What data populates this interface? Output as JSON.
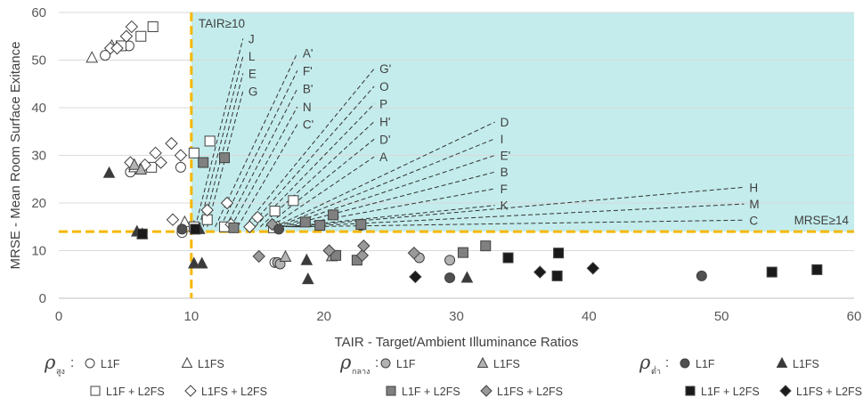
{
  "chart_data": {
    "type": "scatter",
    "title": "",
    "xlabel": "TAIR - Target/Ambient Illuminance Ratios",
    "ylabel": "MRSE - Mean Room Surface Exitance",
    "xlim": [
      0,
      60
    ],
    "ylim": [
      0,
      60
    ],
    "x_ticks": [
      "0",
      "10",
      "20",
      "30",
      "40",
      "50",
      "60"
    ],
    "y_ticks": [
      "0",
      "10",
      "20",
      "30",
      "40",
      "50",
      "60"
    ],
    "grid": "horizontal",
    "threshold_lines": {
      "tair": 10,
      "mrse": 14,
      "tair_label": "TAIR≥10",
      "mrse_label": "MRSE≥14",
      "line_color": "#F5B800",
      "region_fill": "#C4ECEC"
    },
    "series": [
      {
        "key": "s1",
        "group": 0,
        "marker": "circle",
        "fill": "#ffffff",
        "points": [
          [
            3.5,
            51
          ],
          [
            5.3,
            53
          ],
          [
            5.4,
            26.5
          ],
          [
            9.2,
            27.5
          ],
          [
            9.3,
            13.8
          ],
          [
            16.3,
            7.5
          ]
        ]
      },
      {
        "key": "s2",
        "group": 0,
        "marker": "triangle",
        "fill": "#ffffff",
        "points": [
          [
            2.5,
            50.5
          ],
          [
            4,
            53
          ],
          [
            5.7,
            27.5
          ],
          [
            9.5,
            16
          ],
          [
            10.2,
            15
          ]
        ]
      },
      {
        "key": "s3",
        "group": 0,
        "marker": "square",
        "fill": "#ffffff",
        "points": [
          [
            4.7,
            53
          ],
          [
            6.2,
            55
          ],
          [
            7.1,
            57
          ],
          [
            7,
            27.5
          ],
          [
            10.2,
            30.5
          ],
          [
            10.2,
            15
          ],
          [
            11.2,
            16.5
          ],
          [
            11.4,
            33
          ],
          [
            12.5,
            15
          ],
          [
            16.2,
            14.8
          ],
          [
            16.3,
            18.3
          ],
          [
            17.7,
            20.5
          ]
        ]
      },
      {
        "key": "s4",
        "group": 0,
        "marker": "diamond",
        "fill": "#ffffff",
        "points": [
          [
            3.9,
            52.5
          ],
          [
            4.4,
            52.5
          ],
          [
            5.1,
            55
          ],
          [
            5.5,
            57
          ],
          [
            5.4,
            28.5
          ],
          [
            6.5,
            28
          ],
          [
            7.3,
            30.5
          ],
          [
            7.7,
            28.5
          ],
          [
            8.5,
            32.5
          ],
          [
            9.2,
            30
          ],
          [
            8.6,
            16.5
          ],
          [
            11.2,
            18.5
          ],
          [
            12.7,
            20
          ],
          [
            13,
            15.5
          ],
          [
            14.4,
            15
          ],
          [
            15,
            17
          ],
          [
            16.5,
            15
          ]
        ]
      },
      {
        "key": "s5",
        "group": 1,
        "marker": "circle",
        "fill": "#b3b3b3",
        "points": [
          [
            16.5,
            7.5
          ],
          [
            16.7,
            7.2
          ],
          [
            22.8,
            15.3
          ],
          [
            27.2,
            8.5
          ],
          [
            29.5,
            8
          ]
        ]
      },
      {
        "key": "s6",
        "group": 1,
        "marker": "triangle",
        "fill": "#b3b3b3",
        "points": [
          [
            5.7,
            28
          ],
          [
            6.2,
            27
          ],
          [
            17.1,
            8.7
          ],
          [
            20.6,
            8.8
          ]
        ]
      },
      {
        "key": "s7",
        "group": 1,
        "marker": "square",
        "fill": "#808080",
        "points": [
          [
            10.9,
            28.5
          ],
          [
            12.5,
            29.5
          ],
          [
            13.2,
            14.8
          ],
          [
            18.6,
            16
          ],
          [
            19.7,
            15.3
          ],
          [
            20.7,
            17.5
          ],
          [
            20.9,
            9
          ],
          [
            22.5,
            8
          ],
          [
            22.8,
            15.5
          ],
          [
            30.5,
            9.6
          ],
          [
            32.2,
            11
          ]
        ]
      },
      {
        "key": "s8",
        "group": 1,
        "marker": "diamond",
        "fill": "#999999",
        "points": [
          [
            15.1,
            8.8
          ],
          [
            16.1,
            15.5
          ],
          [
            20.4,
            10
          ],
          [
            22.9,
            9
          ],
          [
            23,
            11
          ],
          [
            26.8,
            9.5
          ]
        ]
      },
      {
        "key": "s9",
        "group": 2,
        "marker": "circle",
        "fill": "#505050",
        "points": [
          [
            9.3,
            14.5
          ],
          [
            16.6,
            14.5
          ],
          [
            29.5,
            4.3
          ],
          [
            48.5,
            4.7
          ]
        ]
      },
      {
        "key": "s10",
        "group": 2,
        "marker": "triangle",
        "fill": "#3a3a3a",
        "points": [
          [
            3.8,
            26.3
          ],
          [
            5.9,
            14
          ],
          [
            6.3,
            13.5
          ],
          [
            10.2,
            7.3
          ],
          [
            10.8,
            7.3
          ],
          [
            10.6,
            14.5
          ],
          [
            18.7,
            8
          ],
          [
            18.8,
            4
          ],
          [
            30.8,
            4.3
          ]
        ]
      },
      {
        "key": "s11",
        "group": 2,
        "marker": "square",
        "fill": "#1a1a1a",
        "points": [
          [
            6.3,
            13.5
          ],
          [
            10.3,
            14.5
          ],
          [
            33.9,
            8.5
          ],
          [
            37.6,
            4.7
          ],
          [
            37.7,
            9.5
          ],
          [
            53.8,
            5.5
          ],
          [
            57.2,
            6
          ]
        ]
      },
      {
        "key": "s12",
        "group": 2,
        "marker": "diamond",
        "fill": "#1a1a1a",
        "points": [
          [
            26.9,
            4.5
          ],
          [
            36.3,
            5.5
          ],
          [
            40.3,
            6.3
          ]
        ]
      }
    ],
    "annotations": [
      {
        "label": "J",
        "text_at": [
          14.3,
          54.5
        ],
        "point": [
          10.3,
          15
        ]
      },
      {
        "label": "L",
        "text_at": [
          14.3,
          50.8
        ],
        "point": [
          10.6,
          15
        ]
      },
      {
        "label": "E",
        "text_at": [
          14.3,
          47.2
        ],
        "point": [
          10.9,
          15
        ]
      },
      {
        "label": "G",
        "text_at": [
          14.3,
          43.5
        ],
        "point": [
          11.2,
          15
        ]
      },
      {
        "label": "A'",
        "text_at": [
          18.4,
          51.5
        ],
        "point": [
          11.8,
          15
        ]
      },
      {
        "label": "F'",
        "text_at": [
          18.4,
          47.8
        ],
        "point": [
          12.2,
          15
        ]
      },
      {
        "label": "B'",
        "text_at": [
          18.4,
          44
        ],
        "point": [
          12.6,
          15
        ]
      },
      {
        "label": "N",
        "text_at": [
          18.4,
          40.2
        ],
        "point": [
          13,
          15
        ]
      },
      {
        "label": "C'",
        "text_at": [
          18.4,
          36.5
        ],
        "point": [
          13.5,
          15
        ]
      },
      {
        "label": "G'",
        "text_at": [
          24.2,
          48.2
        ],
        "point": [
          14,
          15
        ]
      },
      {
        "label": "O",
        "text_at": [
          24.2,
          44.5
        ],
        "point": [
          14.4,
          15
        ]
      },
      {
        "label": "P",
        "text_at": [
          24.2,
          40.8
        ],
        "point": [
          14.8,
          15
        ]
      },
      {
        "label": "H'",
        "text_at": [
          24.2,
          37.1
        ],
        "point": [
          15.2,
          15
        ]
      },
      {
        "label": "D'",
        "text_at": [
          24.2,
          33.4
        ],
        "point": [
          15.6,
          15
        ]
      },
      {
        "label": "A",
        "text_at": [
          24.2,
          29.7
        ],
        "point": [
          16,
          15
        ]
      },
      {
        "label": "D",
        "text_at": [
          33.3,
          37
        ],
        "point": [
          16.3,
          15
        ]
      },
      {
        "label": "I",
        "text_at": [
          33.3,
          33.5
        ],
        "point": [
          16.5,
          15
        ]
      },
      {
        "label": "E'",
        "text_at": [
          33.3,
          30
        ],
        "point": [
          16.7,
          15
        ]
      },
      {
        "label": "B",
        "text_at": [
          33.3,
          26.5
        ],
        "point": [
          16.9,
          15
        ]
      },
      {
        "label": "F",
        "text_at": [
          33.3,
          23
        ],
        "point": [
          17.1,
          15
        ]
      },
      {
        "label": "K",
        "text_at": [
          33.3,
          19.5
        ],
        "point": [
          17.3,
          15
        ]
      },
      {
        "label": "H",
        "text_at": [
          52.1,
          23.3
        ],
        "point": [
          17.5,
          15
        ]
      },
      {
        "label": "M",
        "text_at": [
          52.1,
          19.8
        ],
        "point": [
          17.7,
          15
        ]
      },
      {
        "label": "C",
        "text_at": [
          52.1,
          16.4
        ],
        "point": [
          17.9,
          15
        ]
      }
    ]
  },
  "legend": {
    "groups": [
      {
        "symbol": "ρ",
        "subscript": "สูง",
        "colon": ":"
      },
      {
        "symbol": "ρ",
        "subscript": "กลาง",
        "colon": ":"
      },
      {
        "symbol": "ρ",
        "subscript": "ต่ำ",
        "colon": ":"
      }
    ],
    "labels": {
      "s1": "L1F",
      "s2": "L1FS",
      "s3": "L1F + L2FS",
      "s4": "L1FS + L2FS",
      "s5": "L1F",
      "s6": "L1FS",
      "s7": "L1F + L2FS",
      "s8": "L1FS + L2FS",
      "s9": "L1F",
      "s10": "L1FS",
      "s11": "L1F + L2FS",
      "s12": "L1FS + L2FS"
    }
  }
}
